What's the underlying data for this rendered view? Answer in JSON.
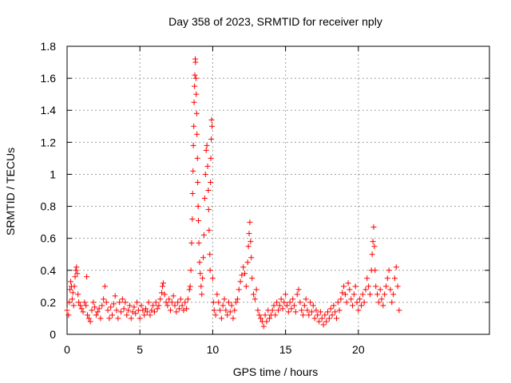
{
  "chart_data": {
    "type": "scatter",
    "title": "Day 358 of 2023, SRMTID for receiver nply",
    "xlabel": "GPS time / hours",
    "ylabel": "SRMTID / TECUs",
    "xlim": [
      0,
      29
    ],
    "ylim": [
      0,
      1.8
    ],
    "xticks": [
      0,
      5,
      10,
      15,
      20
    ],
    "xtick_labels": [
      "0",
      "5",
      "10",
      "15",
      "20"
    ],
    "yticks": [
      0,
      0.2,
      0.4,
      0.6,
      0.8,
      1.0,
      1.2,
      1.4,
      1.6,
      1.8
    ],
    "ytick_labels": [
      "0",
      "0.2",
      "0.4",
      "0.6",
      "0.8",
      "1",
      "1.2",
      "1.4",
      "1.6",
      "1.8"
    ],
    "grid": true,
    "marker": "plus",
    "color": "#ff0000",
    "series": [
      {
        "name": "SRMTID",
        "points": [
          [
            0.0,
            0.15
          ],
          [
            0.1,
            0.12
          ],
          [
            0.15,
            0.2
          ],
          [
            0.2,
            0.28
          ],
          [
            0.25,
            0.33
          ],
          [
            0.3,
            0.3
          ],
          [
            0.35,
            0.22
          ],
          [
            0.4,
            0.26
          ],
          [
            0.45,
            0.18
          ],
          [
            0.5,
            0.3
          ],
          [
            0.55,
            0.36
          ],
          [
            0.6,
            0.4
          ],
          [
            0.65,
            0.42
          ],
          [
            0.7,
            0.38
          ],
          [
            0.75,
            0.25
          ],
          [
            0.8,
            0.2
          ],
          [
            0.9,
            0.18
          ],
          [
            1.0,
            0.16
          ],
          [
            1.1,
            0.14
          ],
          [
            1.2,
            0.2
          ],
          [
            1.3,
            0.18
          ],
          [
            1.35,
            0.36
          ],
          [
            1.4,
            0.12
          ],
          [
            1.5,
            0.1
          ],
          [
            1.6,
            0.08
          ],
          [
            1.7,
            0.15
          ],
          [
            1.8,
            0.2
          ],
          [
            1.9,
            0.17
          ],
          [
            2.0,
            0.12
          ],
          [
            2.1,
            0.14
          ],
          [
            2.2,
            0.16
          ],
          [
            2.3,
            0.1
          ],
          [
            2.4,
            0.18
          ],
          [
            2.5,
            0.22
          ],
          [
            2.6,
            0.3
          ],
          [
            2.7,
            0.2
          ],
          [
            2.8,
            0.15
          ],
          [
            2.9,
            0.1
          ],
          [
            3.0,
            0.17
          ],
          [
            3.1,
            0.12
          ],
          [
            3.2,
            0.19
          ],
          [
            3.3,
            0.24
          ],
          [
            3.4,
            0.15
          ],
          [
            3.5,
            0.1
          ],
          [
            3.6,
            0.2
          ],
          [
            3.7,
            0.14
          ],
          [
            3.8,
            0.22
          ],
          [
            3.9,
            0.16
          ],
          [
            4.0,
            0.2
          ],
          [
            4.1,
            0.12
          ],
          [
            4.2,
            0.15
          ],
          [
            4.3,
            0.18
          ],
          [
            4.4,
            0.1
          ],
          [
            4.5,
            0.14
          ],
          [
            4.6,
            0.17
          ],
          [
            4.7,
            0.13
          ],
          [
            4.8,
            0.2
          ],
          [
            4.9,
            0.15
          ],
          [
            5.0,
            0.1
          ],
          [
            5.1,
            0.18
          ],
          [
            5.2,
            0.15
          ],
          [
            5.3,
            0.12
          ],
          [
            5.4,
            0.16
          ],
          [
            5.5,
            0.14
          ],
          [
            5.6,
            0.2
          ],
          [
            5.7,
            0.12
          ],
          [
            5.8,
            0.15
          ],
          [
            5.9,
            0.18
          ],
          [
            6.0,
            0.14
          ],
          [
            6.1,
            0.2
          ],
          [
            6.2,
            0.16
          ],
          [
            6.3,
            0.18
          ],
          [
            6.4,
            0.22
          ],
          [
            6.5,
            0.26
          ],
          [
            6.55,
            0.3
          ],
          [
            6.6,
            0.32
          ],
          [
            6.7,
            0.25
          ],
          [
            6.8,
            0.2
          ],
          [
            6.9,
            0.18
          ],
          [
            7.0,
            0.22
          ],
          [
            7.1,
            0.15
          ],
          [
            7.2,
            0.2
          ],
          [
            7.3,
            0.24
          ],
          [
            7.4,
            0.18
          ],
          [
            7.5,
            0.14
          ],
          [
            7.6,
            0.2
          ],
          [
            7.7,
            0.16
          ],
          [
            7.8,
            0.22
          ],
          [
            7.9,
            0.18
          ],
          [
            8.0,
            0.15
          ],
          [
            8.1,
            0.2
          ],
          [
            8.2,
            0.16
          ],
          [
            8.3,
            0.22
          ],
          [
            8.4,
            0.28
          ],
          [
            8.45,
            0.3
          ],
          [
            8.5,
            0.4
          ],
          [
            8.55,
            0.57
          ],
          [
            8.6,
            0.72
          ],
          [
            8.62,
            0.88
          ],
          [
            8.65,
            1.02
          ],
          [
            8.67,
            1.18
          ],
          [
            8.7,
            1.3
          ],
          [
            8.72,
            1.45
          ],
          [
            8.75,
            1.55
          ],
          [
            8.77,
            1.62
          ],
          [
            8.8,
            1.72
          ],
          [
            8.82,
            1.7
          ],
          [
            8.85,
            1.6
          ],
          [
            8.87,
            1.5
          ],
          [
            8.9,
            1.38
          ],
          [
            8.92,
            1.25
          ],
          [
            8.95,
            1.1
          ],
          [
            8.97,
            0.95
          ],
          [
            9.0,
            0.8
          ],
          [
            9.02,
            0.71
          ],
          [
            9.05,
            0.57
          ],
          [
            9.1,
            0.45
          ],
          [
            9.15,
            0.38
          ],
          [
            9.2,
            0.3
          ],
          [
            9.25,
            0.25
          ],
          [
            9.3,
            0.35
          ],
          [
            9.35,
            0.48
          ],
          [
            9.4,
            0.62
          ],
          [
            9.45,
            0.85
          ],
          [
            9.5,
            1.0
          ],
          [
            9.55,
            1.15
          ],
          [
            9.6,
            1.18
          ],
          [
            9.65,
            1.05
          ],
          [
            9.7,
            0.9
          ],
          [
            9.72,
            0.78
          ],
          [
            9.75,
            0.65
          ],
          [
            9.8,
            0.5
          ],
          [
            9.82,
            0.4
          ],
          [
            9.85,
            0.95
          ],
          [
            9.87,
            1.1
          ],
          [
            9.9,
            1.22
          ],
          [
            9.92,
            1.34
          ],
          [
            9.95,
            1.3
          ],
          [
            10.0,
            0.35
          ],
          [
            10.05,
            0.2
          ],
          [
            10.1,
            0.15
          ],
          [
            10.2,
            0.12
          ],
          [
            10.3,
            0.25
          ],
          [
            10.4,
            0.2
          ],
          [
            10.5,
            0.15
          ],
          [
            10.6,
            0.1
          ],
          [
            10.7,
            0.18
          ],
          [
            10.8,
            0.22
          ],
          [
            10.9,
            0.15
          ],
          [
            11.0,
            0.12
          ],
          [
            11.1,
            0.2
          ],
          [
            11.2,
            0.14
          ],
          [
            11.3,
            0.18
          ],
          [
            11.4,
            0.1
          ],
          [
            11.5,
            0.15
          ],
          [
            11.6,
            0.2
          ],
          [
            11.7,
            0.22
          ],
          [
            11.8,
            0.28
          ],
          [
            11.9,
            0.33
          ],
          [
            12.0,
            0.37
          ],
          [
            12.1,
            0.42
          ],
          [
            12.2,
            0.38
          ],
          [
            12.3,
            0.3
          ],
          [
            12.4,
            0.45
          ],
          [
            12.45,
            0.55
          ],
          [
            12.5,
            0.63
          ],
          [
            12.55,
            0.7
          ],
          [
            12.6,
            0.58
          ],
          [
            12.65,
            0.48
          ],
          [
            12.7,
            0.35
          ],
          [
            12.8,
            0.25
          ],
          [
            12.9,
            0.22
          ],
          [
            13.0,
            0.28
          ],
          [
            13.1,
            0.15
          ],
          [
            13.2,
            0.12
          ],
          [
            13.3,
            0.1
          ],
          [
            13.4,
            0.08
          ],
          [
            13.5,
            0.05
          ],
          [
            13.6,
            0.12
          ],
          [
            13.7,
            0.08
          ],
          [
            13.8,
            0.15
          ],
          [
            13.9,
            0.1
          ],
          [
            14.0,
            0.12
          ],
          [
            14.1,
            0.15
          ],
          [
            14.2,
            0.18
          ],
          [
            14.3,
            0.12
          ],
          [
            14.4,
            0.2
          ],
          [
            14.5,
            0.15
          ],
          [
            14.6,
            0.18
          ],
          [
            14.7,
            0.22
          ],
          [
            14.8,
            0.16
          ],
          [
            14.9,
            0.2
          ],
          [
            15.0,
            0.25
          ],
          [
            15.1,
            0.18
          ],
          [
            15.2,
            0.14
          ],
          [
            15.3,
            0.2
          ],
          [
            15.4,
            0.16
          ],
          [
            15.5,
            0.22
          ],
          [
            15.6,
            0.18
          ],
          [
            15.7,
            0.14
          ],
          [
            15.8,
            0.25
          ],
          [
            15.9,
            0.28
          ],
          [
            16.0,
            0.2
          ],
          [
            16.1,
            0.15
          ],
          [
            16.2,
            0.12
          ],
          [
            16.3,
            0.18
          ],
          [
            16.4,
            0.22
          ],
          [
            16.5,
            0.15
          ],
          [
            16.6,
            0.12
          ],
          [
            16.7,
            0.2
          ],
          [
            16.8,
            0.14
          ],
          [
            16.9,
            0.18
          ],
          [
            17.0,
            0.1
          ],
          [
            17.1,
            0.15
          ],
          [
            17.2,
            0.12
          ],
          [
            17.3,
            0.08
          ],
          [
            17.4,
            0.14
          ],
          [
            17.5,
            0.1
          ],
          [
            17.6,
            0.06
          ],
          [
            17.7,
            0.12
          ],
          [
            17.8,
            0.08
          ],
          [
            17.9,
            0.14
          ],
          [
            18.0,
            0.1
          ],
          [
            18.1,
            0.16
          ],
          [
            18.2,
            0.12
          ],
          [
            18.3,
            0.18
          ],
          [
            18.4,
            0.14
          ],
          [
            18.5,
            0.1
          ],
          [
            18.6,
            0.2
          ],
          [
            18.7,
            0.15
          ],
          [
            18.8,
            0.22
          ],
          [
            18.9,
            0.26
          ],
          [
            19.0,
            0.3
          ],
          [
            19.1,
            0.25
          ],
          [
            19.2,
            0.2
          ],
          [
            19.3,
            0.32
          ],
          [
            19.4,
            0.28
          ],
          [
            19.5,
            0.22
          ],
          [
            19.6,
            0.18
          ],
          [
            19.7,
            0.25
          ],
          [
            19.8,
            0.3
          ],
          [
            19.9,
            0.2
          ],
          [
            20.0,
            0.15
          ],
          [
            20.1,
            0.22
          ],
          [
            20.2,
            0.18
          ],
          [
            20.3,
            0.25
          ],
          [
            20.4,
            0.2
          ],
          [
            20.5,
            0.28
          ],
          [
            20.6,
            0.35
          ],
          [
            20.7,
            0.3
          ],
          [
            20.8,
            0.25
          ],
          [
            20.9,
            0.4
          ],
          [
            20.95,
            0.5
          ],
          [
            21.0,
            0.58
          ],
          [
            21.05,
            0.67
          ],
          [
            21.1,
            0.55
          ],
          [
            21.15,
            0.4
          ],
          [
            21.2,
            0.3
          ],
          [
            21.3,
            0.25
          ],
          [
            21.4,
            0.2
          ],
          [
            21.5,
            0.28
          ],
          [
            21.6,
            0.22
          ],
          [
            21.7,
            0.18
          ],
          [
            21.8,
            0.25
          ],
          [
            21.9,
            0.3
          ],
          [
            22.0,
            0.35
          ],
          [
            22.1,
            0.4
          ],
          [
            22.2,
            0.28
          ],
          [
            22.3,
            0.2
          ],
          [
            22.4,
            0.25
          ],
          [
            22.5,
            0.35
          ],
          [
            22.6,
            0.42
          ],
          [
            22.7,
            0.3
          ],
          [
            22.8,
            0.15
          ]
        ]
      }
    ]
  }
}
